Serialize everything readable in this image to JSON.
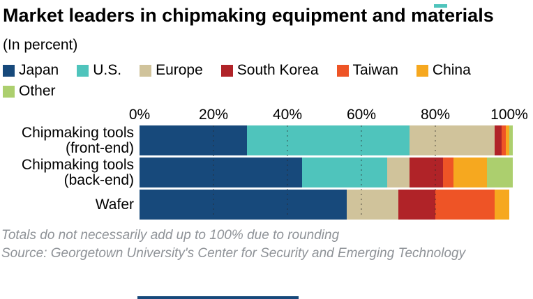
{
  "title": "Market leaders in chipmaking equipment and materials",
  "subtitle": "(In percent)",
  "footnote": "Totals do not necessarily add up to 100% due to rounding",
  "source": "Source: Georgetown University's Center for Security and Emerging Technology",
  "colors": {
    "japan": "#17497b",
    "us": "#4fc4bc",
    "europe": "#d0c39b",
    "south_korea": "#b02328",
    "taiwan": "#ee5426",
    "china": "#f6a81f",
    "other": "#accf6e",
    "footer_text": "#8e9297"
  },
  "chart_data": {
    "type": "bar",
    "orientation": "horizontal",
    "stacked": true,
    "title": "Market leaders in chipmaking equipment and materials",
    "xlabel": "",
    "ylabel": "",
    "xlim": [
      0,
      100
    ],
    "x_ticks": [
      {
        "label": "0%",
        "value": 0
      },
      {
        "label": "20%",
        "value": 20
      },
      {
        "label": "40%",
        "value": 40
      },
      {
        "label": "60%",
        "value": 60
      },
      {
        "label": "80%",
        "value": 80
      },
      {
        "label": "100%",
        "value": 100
      }
    ],
    "gridlines": [
      20,
      40,
      60,
      80
    ],
    "grid_style": "dotted",
    "legend_position": "top",
    "categories": [
      "Chipmaking tools (front-end)",
      "Chipmaking tools (back-end)",
      "Wafer"
    ],
    "series": [
      {
        "name": "Japan",
        "color": "#17497b",
        "values": [
          29,
          44,
          56
        ]
      },
      {
        "name": "U.S.",
        "color": "#4fc4bc",
        "values": [
          44,
          23,
          0
        ]
      },
      {
        "name": "Europe",
        "color": "#d0c39b",
        "values": [
          23,
          6,
          14
        ]
      },
      {
        "name": "South Korea",
        "color": "#b02328",
        "values": [
          2,
          9,
          10
        ]
      },
      {
        "name": "Taiwan",
        "color": "#ee5426",
        "values": [
          1,
          3,
          16
        ]
      },
      {
        "name": "China",
        "color": "#f6a81f",
        "values": [
          1,
          9,
          4
        ]
      },
      {
        "name": "Other",
        "color": "#accf6e",
        "values": [
          1,
          7,
          0
        ]
      }
    ]
  },
  "layout_fragments": {
    "top_right_sliver_color": "#4fc4bc",
    "bottom_left_sliver_color": "#17497b"
  }
}
